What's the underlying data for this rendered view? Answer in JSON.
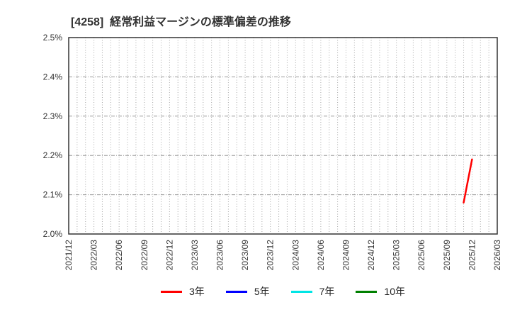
{
  "title": "[4258]  経常利益マージンの標準偏差の推移",
  "chart_data": {
    "type": "line",
    "title": "[4258]  経常利益マージンの標準偏差の推移",
    "x_range": {
      "start": "2021/12",
      "end": "2026/03"
    },
    "x_tick_labels": [
      "2021/12",
      "2022/03",
      "2022/06",
      "2022/09",
      "2022/12",
      "2023/03",
      "2023/06",
      "2023/09",
      "2023/12",
      "2024/03",
      "2024/06",
      "2024/09",
      "2024/12",
      "2025/03",
      "2025/06",
      "2025/09",
      "2025/12",
      "2026/03"
    ],
    "y_tick_labels": [
      "2.0%",
      "2.1%",
      "2.2%",
      "2.3%",
      "2.4%",
      "2.5%"
    ],
    "ylim": [
      2.0,
      2.5
    ],
    "grid": {
      "vertical": "monthly dotted",
      "horizontal": "0.1% step dashed"
    },
    "legend_position": "bottom-center",
    "series": [
      {
        "name": "3年",
        "color": "#ff0000",
        "points": [
          {
            "x": "2025/11",
            "y": 2.08
          },
          {
            "x": "2025/12",
            "y": 2.19
          }
        ]
      },
      {
        "name": "5年",
        "color": "#0000ff",
        "points": []
      },
      {
        "name": "7年",
        "color": "#00e5e5",
        "points": []
      },
      {
        "name": "10年",
        "color": "#008000",
        "points": []
      }
    ],
    "colors": {
      "grid_vertical": "#aaaaaa",
      "grid_horizontal": "#999999",
      "border": "#333333",
      "tick_text": "#333333"
    }
  }
}
